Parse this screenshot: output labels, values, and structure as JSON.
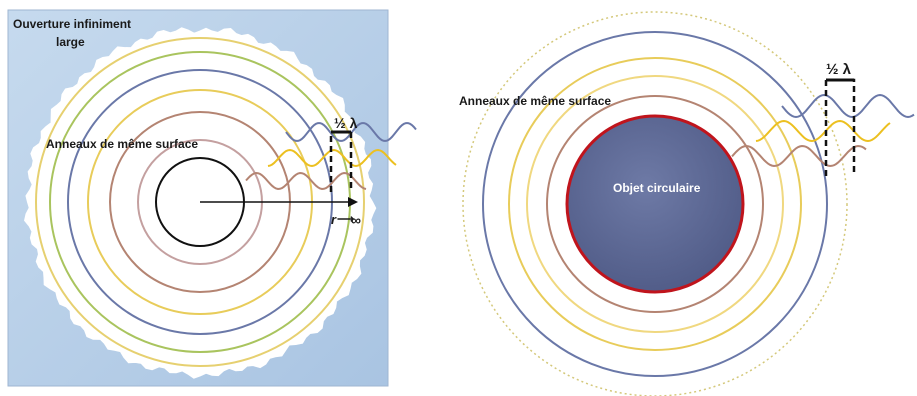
{
  "left_panel": {
    "title_line1": "Ouverture infiniment",
    "title_line2": "large",
    "rings_label": "Anneaux de même surface",
    "half_lambda": "½ λ",
    "r_label": "r",
    "arrow_glyph": "⟶",
    "infinity": "∞",
    "background_color": "#bcd2ea",
    "ring_colors": [
      "#c4a0a0",
      "#b48472",
      "#e8cc5a",
      "#6a78a8",
      "#a9c45e",
      "#e8cc5a",
      "#6a78a8"
    ]
  },
  "right_panel": {
    "rings_label": "Anneaux de même surface",
    "half_lambda": "½ λ",
    "object_label": "Objet circulaire",
    "object_fill": "#5c6892",
    "object_border": "#c0141c",
    "outer_dotted_color": "#d4c87a"
  },
  "wave_colors": {
    "blue": "#6a78a8",
    "yellow": "#ecc020",
    "brown": "#b48472"
  }
}
